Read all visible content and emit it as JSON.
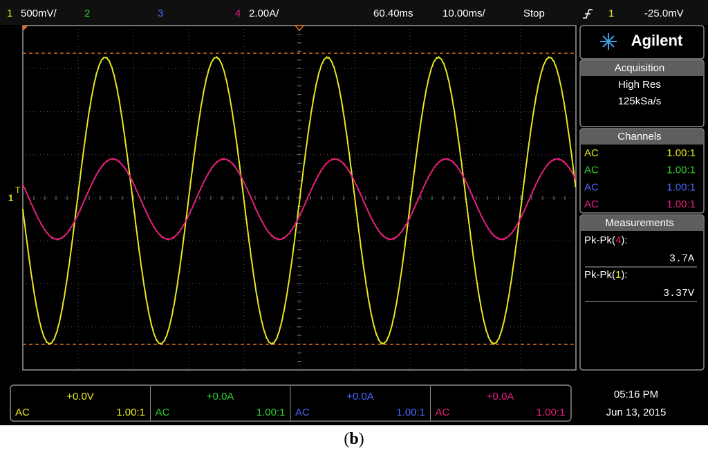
{
  "top_bar": {
    "ch1": "1",
    "ch1_scale": "500mV/",
    "ch2": "2",
    "ch3": "3",
    "ch4": "4",
    "ch4_scale": "2.00A/",
    "delay": "60.40ms",
    "timebase": "10.00ms/",
    "status": "Stop",
    "trigger_source": "1",
    "trigger_level": "-25.0mV"
  },
  "screen": {
    "ch1_marker": "1",
    "trigger_marker": "T"
  },
  "side_panel": {
    "brand": "Agilent",
    "acquisition": {
      "title": "Acquisition",
      "mode": "High Res",
      "rate": "125kSa/s"
    },
    "channels": {
      "title": "Channels",
      "rows": [
        {
          "coupling": "AC",
          "probe": "1.00:1"
        },
        {
          "coupling": "AC",
          "probe": "1.00:1"
        },
        {
          "coupling": "AC",
          "probe": "1.00:1"
        },
        {
          "coupling": "AC",
          "probe": "1.00:1"
        }
      ]
    },
    "measurements": {
      "title": "Measurements",
      "items": [
        {
          "prefix": "Pk-Pk(",
          "channel": "4",
          "suffix": "):",
          "value": "3.7A"
        },
        {
          "prefix": "Pk-Pk(",
          "channel": "1",
          "suffix": "):",
          "value": "3.37V"
        }
      ]
    }
  },
  "bottom_bar": {
    "channels": [
      {
        "offset": "+0.0V",
        "coupling": "AC",
        "probe": "1.00:1"
      },
      {
        "offset": "+0.0A",
        "coupling": "AC",
        "probe": "1.00:1"
      },
      {
        "offset": "+0.0A",
        "coupling": "AC",
        "probe": "1.00:1"
      },
      {
        "offset": "+0.0A",
        "coupling": "AC",
        "probe": "1.00:1"
      }
    ],
    "time": "05:16 PM",
    "date": "Jun 13, 2015"
  },
  "caption": {
    "open": "(",
    "label": "b",
    "close": ")"
  }
}
